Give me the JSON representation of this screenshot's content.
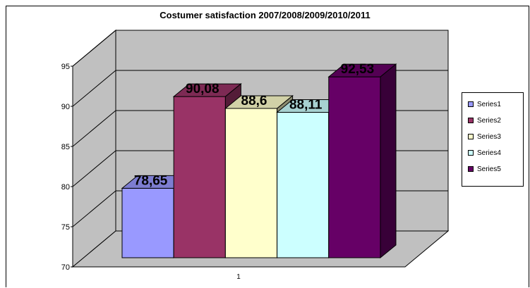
{
  "chart_data": {
    "type": "bar",
    "title": "Costumer satisfaction 2007/2008/2009/2010/2011",
    "categories": [
      "1"
    ],
    "series": [
      {
        "name": "Series1",
        "values": [
          78.65
        ],
        "label": "78,65",
        "color": "#9999ff"
      },
      {
        "name": "Series2",
        "values": [
          90.08
        ],
        "label": "90,08",
        "color": "#993366"
      },
      {
        "name": "Series3",
        "values": [
          88.6
        ],
        "label": "88,6",
        "color": "#ffffcc"
      },
      {
        "name": "Series4",
        "values": [
          88.11
        ],
        "label": "88,11",
        "color": "#ccffff"
      },
      {
        "name": "Series5",
        "values": [
          92.53
        ],
        "label": "92,53",
        "color": "#660066"
      }
    ],
    "ylim": [
      70,
      95
    ],
    "yticks": [
      "70",
      "75",
      "80",
      "85",
      "90",
      "95"
    ],
    "xticks": [
      "1"
    ],
    "grid": true,
    "legend_position": "right",
    "wall_color": "#c0c0c0",
    "three_d": true
  }
}
